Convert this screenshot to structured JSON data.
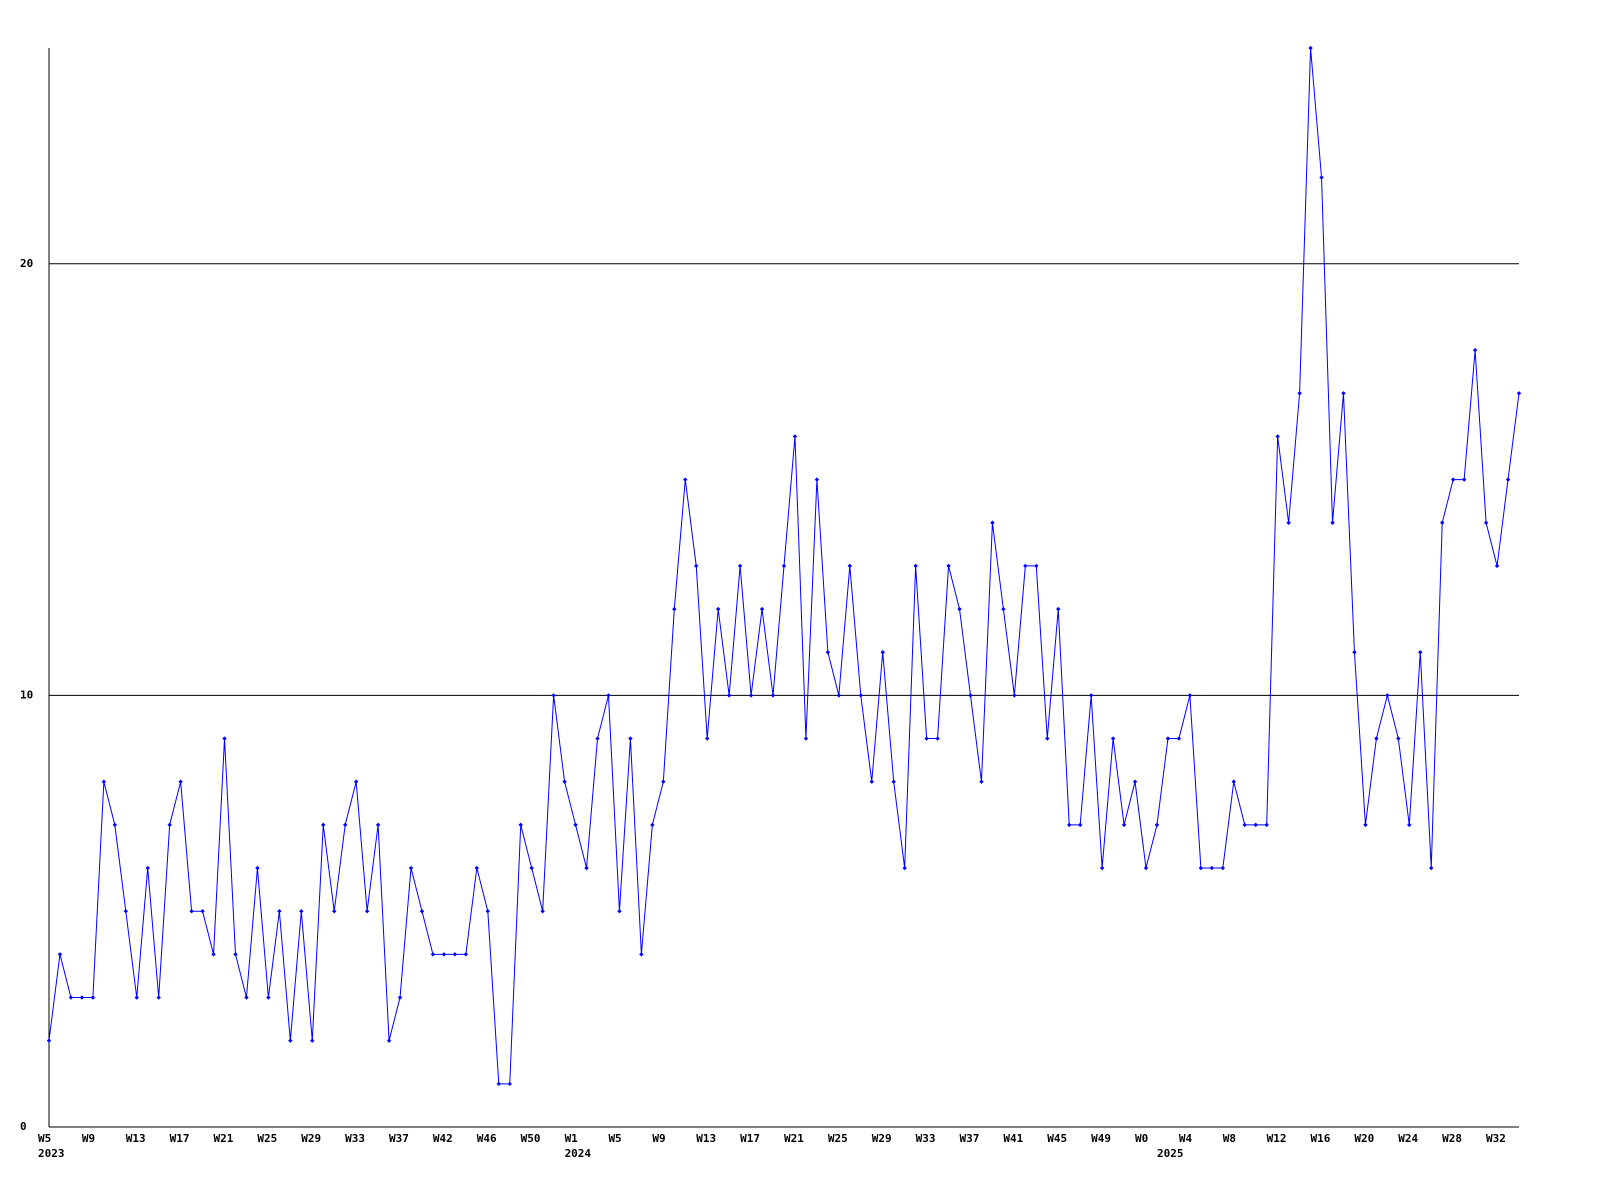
{
  "chart_data": {
    "type": "line",
    "categories": [
      "W5",
      null,
      null,
      null,
      "W9",
      null,
      null,
      null,
      "W13",
      null,
      null,
      null,
      "W17",
      null,
      null,
      null,
      "W21",
      null,
      null,
      null,
      "W25",
      null,
      null,
      null,
      "W29",
      null,
      null,
      null,
      "W33",
      null,
      null,
      null,
      "W37",
      null,
      null,
      null,
      "W42",
      null,
      null,
      null,
      "W46",
      null,
      null,
      null,
      "W50",
      null,
      null,
      null,
      "W1",
      null,
      null,
      null,
      "W5",
      null,
      null,
      null,
      "W9",
      null,
      null,
      null,
      "W13",
      null,
      null,
      null,
      "W17",
      null,
      null,
      null,
      "W21",
      null,
      null,
      null,
      "W25",
      null,
      null,
      null,
      "W29",
      null,
      null,
      null,
      "W33",
      null,
      null,
      null,
      "W37",
      null,
      null,
      null,
      "W41",
      null,
      null,
      null,
      "W45",
      null,
      null,
      null,
      "W49",
      null,
      null,
      null,
      "W0",
      null,
      null,
      null,
      "W4",
      null,
      null,
      null,
      "W8",
      null,
      null,
      null,
      "W12",
      null,
      null,
      null,
      "W16",
      null,
      null,
      null,
      "W20",
      null,
      null,
      null,
      "W24",
      null,
      null,
      null,
      "W28",
      null,
      null,
      null,
      "W32",
      null,
      null
    ],
    "category_years": [
      "2023",
      null,
      null,
      null,
      null,
      null,
      null,
      null,
      null,
      null,
      null,
      null,
      null,
      null,
      null,
      null,
      null,
      null,
      null,
      null,
      null,
      null,
      null,
      null,
      null,
      null,
      null,
      null,
      null,
      null,
      null,
      null,
      null,
      null,
      null,
      null,
      null,
      null,
      null,
      null,
      null,
      null,
      null,
      null,
      null,
      null,
      null,
      null,
      "2024",
      null,
      null,
      null,
      null,
      null,
      null,
      null,
      null,
      null,
      null,
      null,
      null,
      null,
      null,
      null,
      null,
      null,
      null,
      null,
      null,
      null,
      null,
      null,
      null,
      null,
      null,
      null,
      null,
      null,
      null,
      null,
      null,
      null,
      null,
      null,
      null,
      null,
      null,
      null,
      null,
      null,
      null,
      null,
      null,
      null,
      null,
      null,
      null,
      null,
      null,
      null,
      null,
      null,
      "2025",
      null,
      null,
      null,
      null,
      null,
      null,
      null,
      null,
      null,
      null,
      null,
      null,
      null,
      null,
      null,
      null,
      null,
      null,
      null,
      null,
      null,
      null,
      null,
      null,
      null,
      null,
      null,
      null,
      null,
      null,
      null,
      null,
      null
    ],
    "values": [
      2,
      4,
      3,
      3,
      3,
      8,
      7,
      5,
      3,
      6,
      3,
      7,
      8,
      5,
      5,
      4,
      9,
      4,
      3,
      6,
      3,
      5,
      2,
      5,
      2,
      7,
      5,
      7,
      8,
      5,
      7,
      2,
      3,
      6,
      5,
      4,
      4,
      4,
      4,
      6,
      5,
      1,
      1,
      7,
      6,
      5,
      10,
      8,
      7,
      6,
      9,
      10,
      5,
      9,
      4,
      7,
      8,
      12,
      15,
      13,
      9,
      12,
      10,
      13,
      10,
      12,
      10,
      13,
      16,
      9,
      15,
      11,
      10,
      13,
      10,
      8,
      11,
      8,
      6,
      13,
      9,
      9,
      13,
      12,
      10,
      8,
      14,
      12,
      10,
      13,
      13,
      9,
      12,
      7,
      7,
      10,
      6,
      9,
      7,
      8,
      6,
      7,
      9,
      9,
      10,
      6,
      6,
      6,
      8,
      7,
      7,
      7,
      16,
      14,
      17,
      25,
      22,
      14,
      17,
      11,
      7,
      9,
      10,
      9,
      7,
      11,
      6,
      14,
      15,
      15,
      18,
      14,
      13,
      15,
      17
    ],
    "color": "#0000ff",
    "ylim": [
      0,
      25
    ],
    "yticks": [
      0,
      10,
      20
    ],
    "grid": true
  }
}
